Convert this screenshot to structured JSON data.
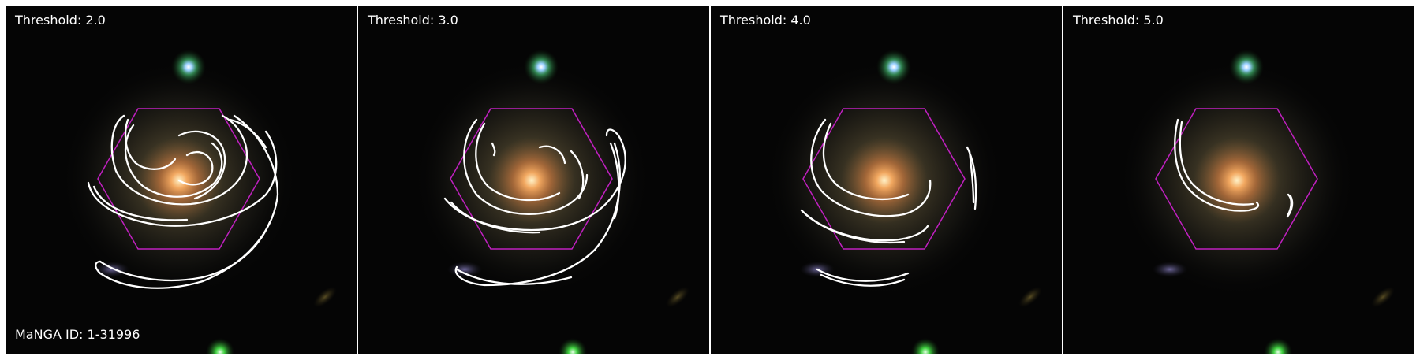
{
  "panels": [
    {
      "label": "Threshold: 2.0"
    },
    {
      "label": "Threshold: 3.0"
    },
    {
      "label": "Threshold: 4.0"
    },
    {
      "label": "Threshold: 5.0"
    }
  ],
  "galaxy_id_label": "MaNGA ID: 1-31996",
  "colors": {
    "contour": "#ffffff",
    "hexagon": "#c020c0",
    "background": "#050505"
  }
}
